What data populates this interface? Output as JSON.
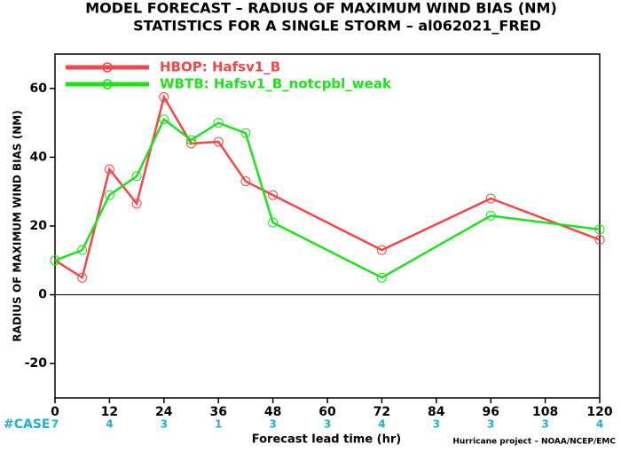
{
  "chart_data": {
    "type": "line",
    "title": "MODEL FORECAST – RADIUS OF MAXIMUM WIND BIAS (NM)",
    "subtitle": "STATISTICS FOR A SINGLE STORM – al062021_FRED",
    "x_label": "Forecast lead time (hr)",
    "y_label": "RADIUS OF MAXIMUM WIND BIAS (NM)",
    "x": [
      0,
      6,
      12,
      18,
      24,
      30,
      36,
      42,
      48,
      72,
      96,
      120
    ],
    "series": [
      {
        "name": "HBOP: Hafsv1_B",
        "color": "#f04848",
        "values": [
          10,
          5,
          36.5,
          26.5,
          57.5,
          44,
          44.5,
          33,
          29,
          13,
          28,
          16
        ]
      },
      {
        "name": "WBTB: Hafsv1_B_notcpbl_weak",
        "color": "#20e020",
        "values": [
          10,
          13,
          29,
          34.5,
          51,
          45,
          50,
          47,
          21,
          5,
          23,
          19
        ]
      }
    ],
    "xlim": [
      0,
      120
    ],
    "xticks": [
      0,
      12,
      24,
      36,
      48,
      60,
      72,
      84,
      96,
      108,
      120
    ],
    "ylim": [
      -30,
      70
    ],
    "yticks": [
      -20,
      0,
      20,
      40,
      60
    ],
    "case_label": "#CASE",
    "case_counts": [
      7,
      4,
      3,
      1,
      3,
      3,
      4,
      3,
      3,
      3,
      4
    ],
    "credit": "Hurricane project – NOAA/NCEP/EMC",
    "legend": "upper left"
  }
}
